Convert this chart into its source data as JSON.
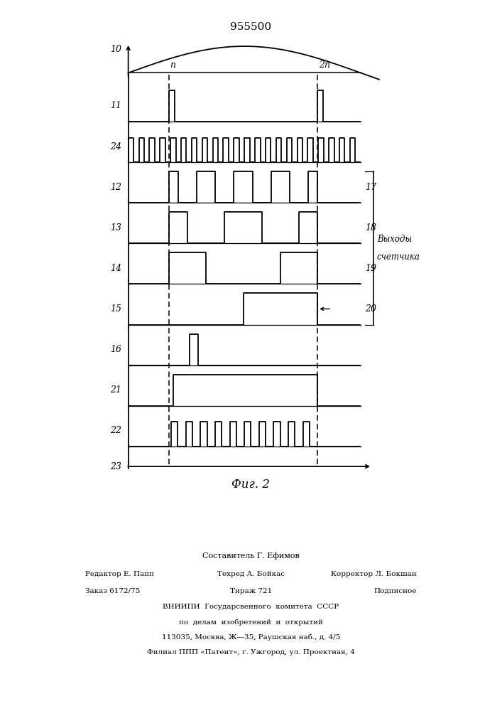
{
  "title": "955500",
  "fig_label": "Фиг. 2",
  "background_color": "#ffffff",
  "line_color": "#000000",
  "fig_width": 7.07,
  "fig_height": 10.0,
  "dpi": 100,
  "pi_label": "п",
  "two_pi_label": "2п",
  "counter_label_line1": "Выходы",
  "counter_label_line2": "счетчика",
  "footer_line1": "Составитель Г. Ефимов",
  "footer_line2_left": "Редактор Е. Папп",
  "footer_line2_mid": "Техред А. Бойкас",
  "footer_line2_right": "Корректор Л. Бокшан",
  "footer_line3_left": "Заказ 6172/75",
  "footer_line3_mid": "Тираж 721",
  "footer_line3_right": "Подписное",
  "footer_vniipи": "ВНИИПИ  Государсвенного  комитета  СССР",
  "footer_po_delam": "по  делам  изобретений  и  открытий",
  "footer_address": "113035, Москва, Ж—35, Раушская наб., д. 4/5",
  "footer_filial": "Филиал ППП «Патент», г. Ужгород, ул. Проектная, 4"
}
